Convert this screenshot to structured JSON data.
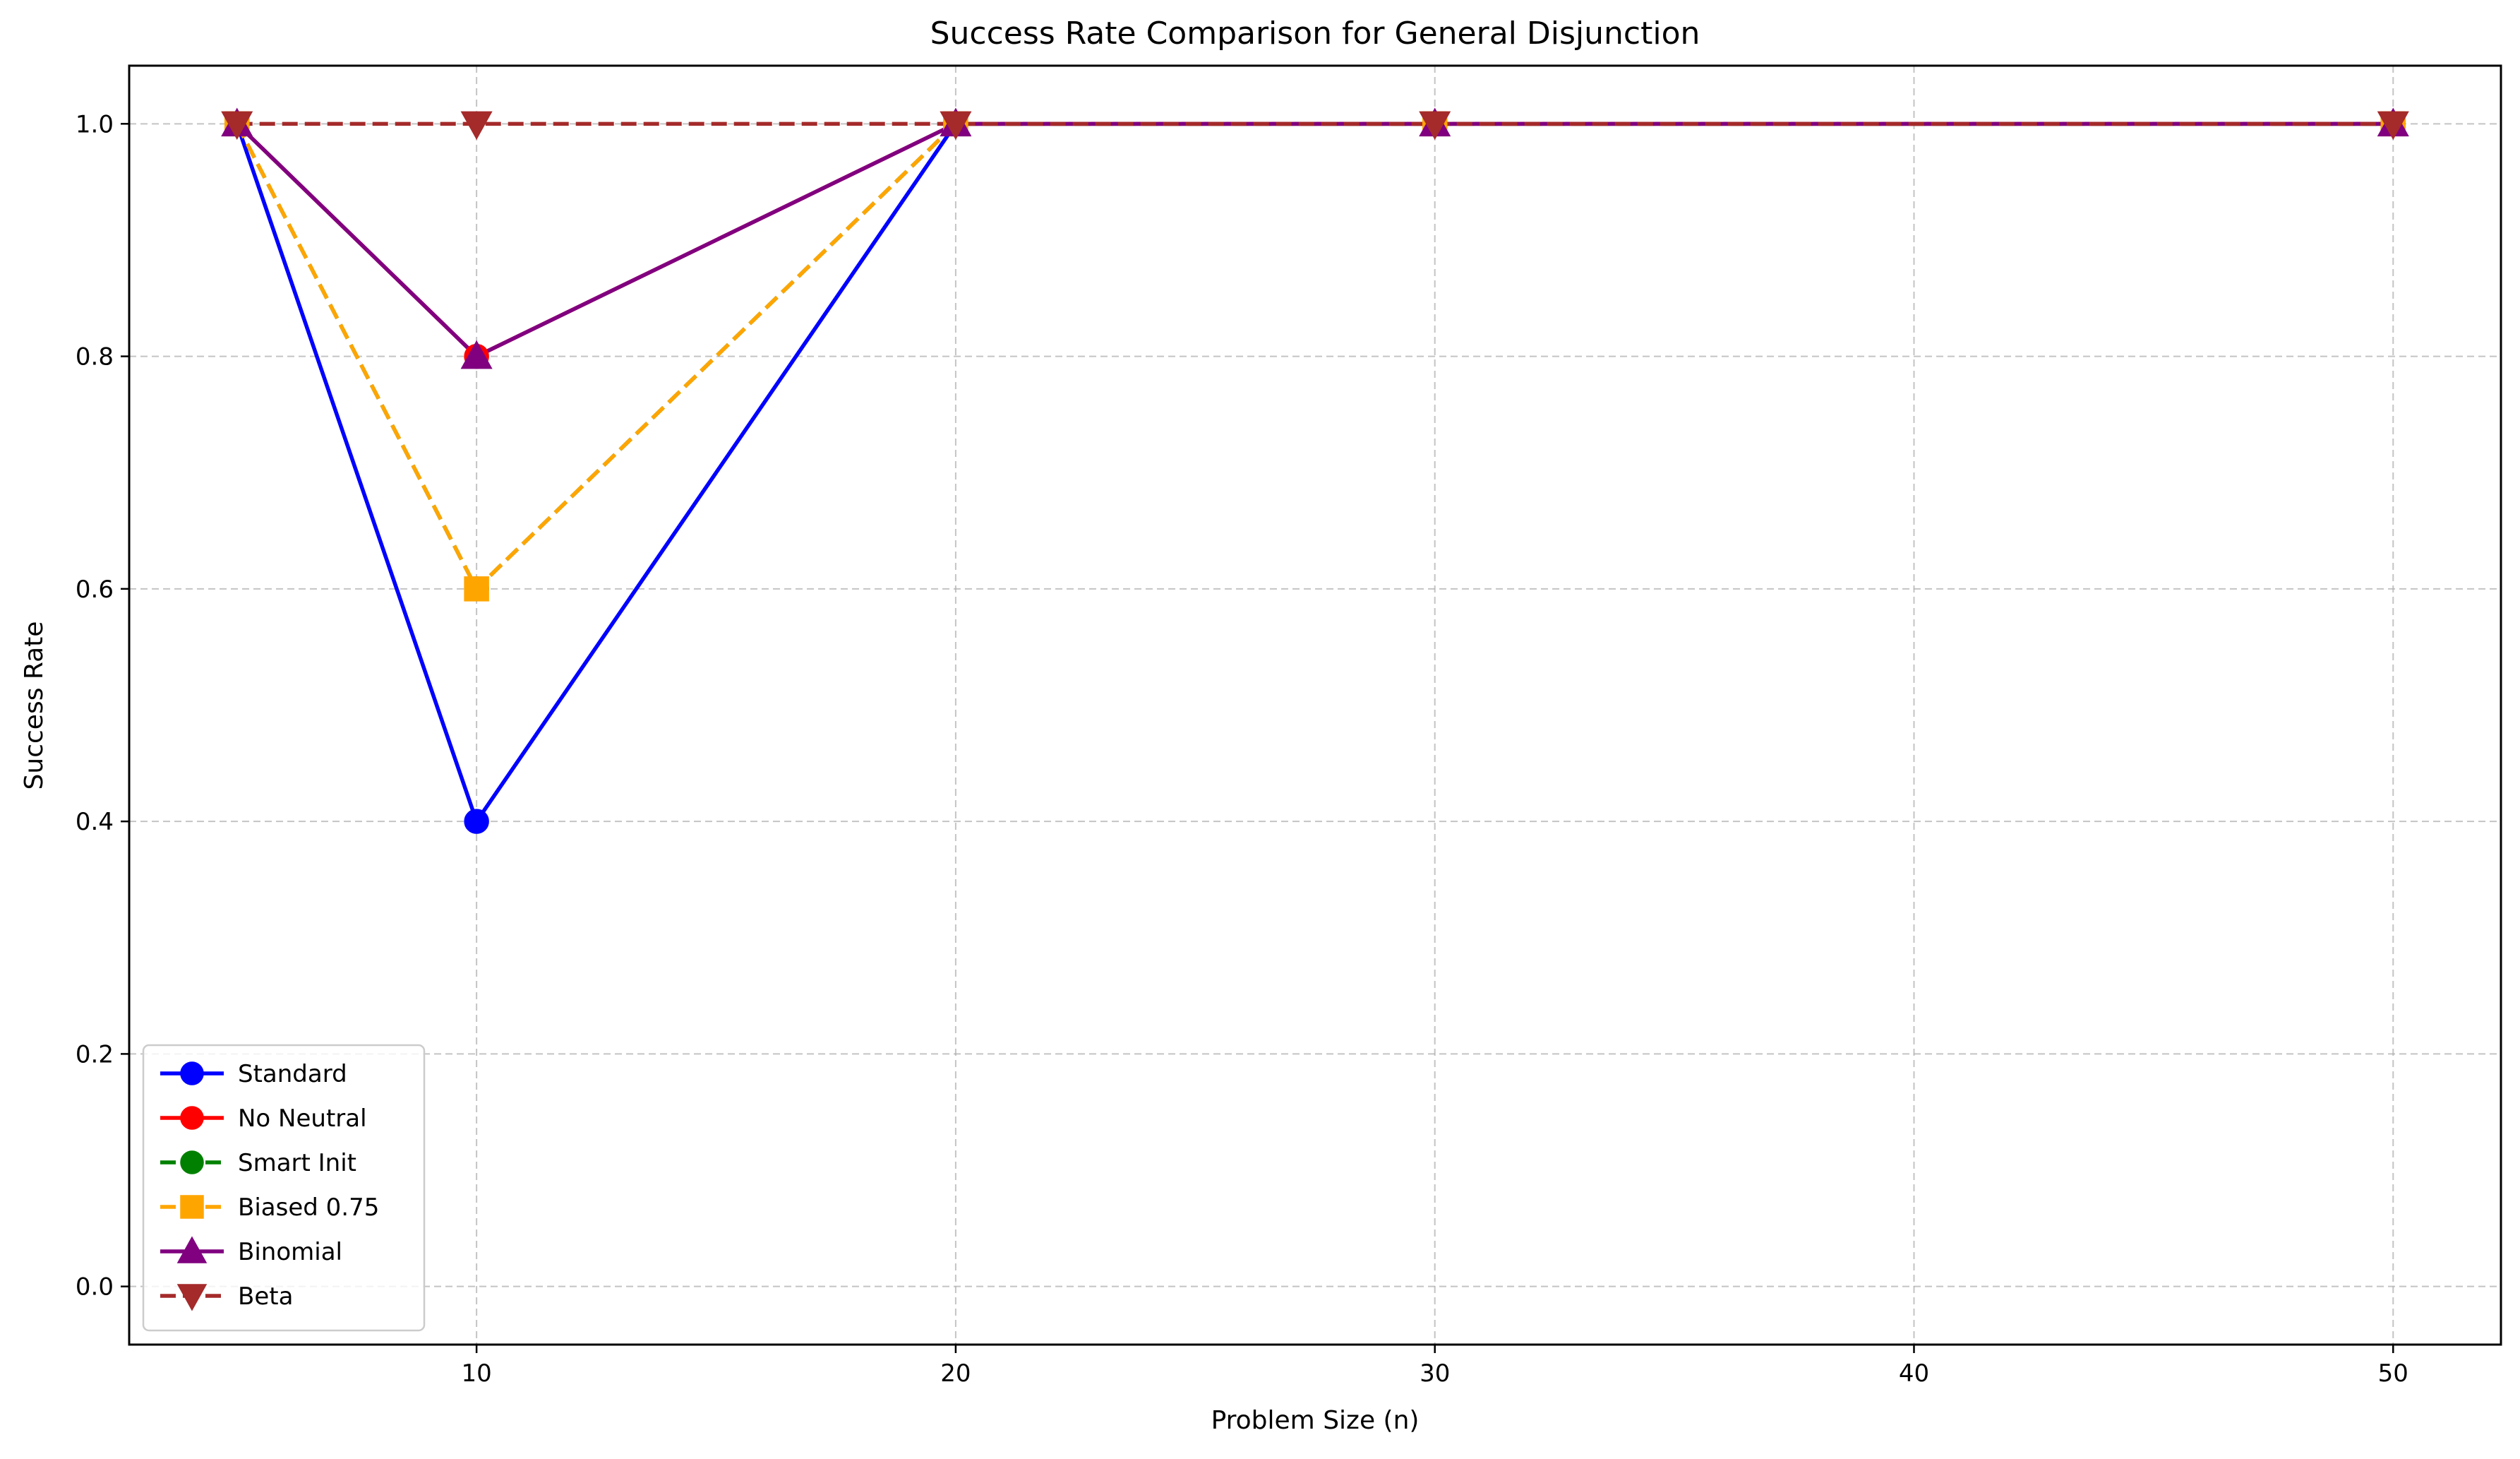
{
  "chart_data": {
    "type": "line",
    "title": "Success Rate Comparison for General Disjunction",
    "xlabel": "Problem Size (n)",
    "ylabel": "Success Rate",
    "x": [
      5,
      10,
      20,
      30,
      50
    ],
    "xlim": [
      2.75,
      52.25
    ],
    "ylim": [
      -0.05,
      1.05
    ],
    "xticks": [
      10,
      20,
      30,
      40,
      50
    ],
    "yticks": [
      0.0,
      0.2,
      0.4,
      0.6,
      0.8,
      1.0
    ],
    "xtick_labels": [
      "10",
      "20",
      "30",
      "40",
      "50"
    ],
    "ytick_labels": [
      "0.0",
      "0.2",
      "0.4",
      "0.6",
      "0.8",
      "1.0"
    ],
    "grid": true,
    "legend_position": "lower-left",
    "series": [
      {
        "name": "Standard",
        "values": [
          1.0,
          0.4,
          1.0,
          1.0,
          1.0
        ],
        "color": "#0000ff",
        "marker": "circle",
        "dash": "solid"
      },
      {
        "name": "No Neutral",
        "values": [
          1.0,
          0.8,
          1.0,
          1.0,
          1.0
        ],
        "color": "#ff0000",
        "marker": "circle",
        "dash": "solid"
      },
      {
        "name": "Smart Init",
        "values": [
          1.0,
          0.6,
          1.0,
          1.0,
          1.0
        ],
        "color": "#008000",
        "marker": "circle",
        "dash": "dashed"
      },
      {
        "name": "Biased 0.75",
        "values": [
          1.0,
          0.6,
          1.0,
          1.0,
          1.0
        ],
        "color": "#ffa500",
        "marker": "square",
        "dash": "dashed"
      },
      {
        "name": "Binomial",
        "values": [
          1.0,
          0.8,
          1.0,
          1.0,
          1.0
        ],
        "color": "#800080",
        "marker": "triangle-up",
        "dash": "solid"
      },
      {
        "name": "Beta",
        "values": [
          1.0,
          1.0,
          1.0,
          1.0,
          1.0
        ],
        "color": "#a52a2a",
        "marker": "triangle-down",
        "dash": "dashed"
      }
    ]
  }
}
